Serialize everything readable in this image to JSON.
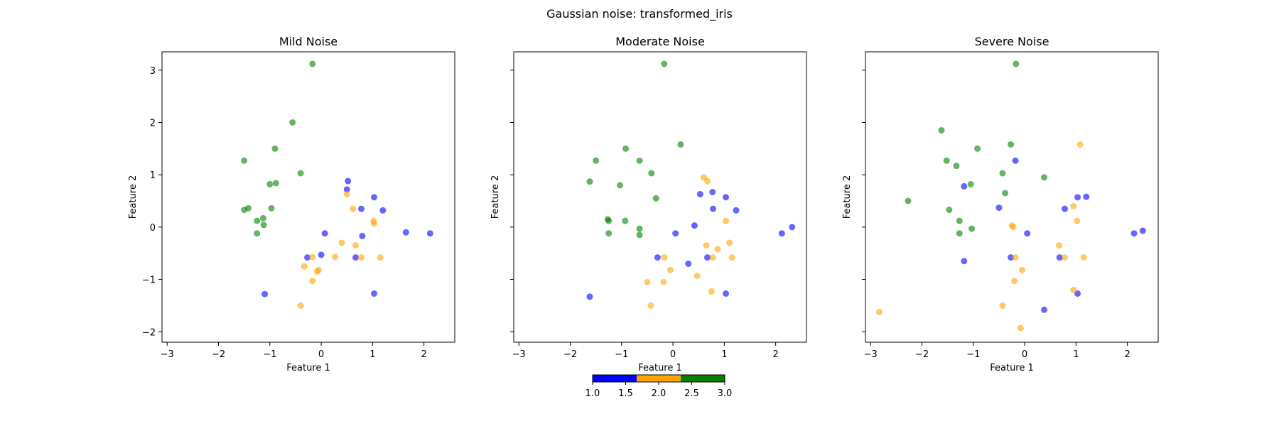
{
  "figure": {
    "title": "Gaussian noise: transformed_iris"
  },
  "colors": {
    "class_1": "#0000ff",
    "class_2": "#ffa500",
    "class_3": "#008000"
  },
  "colorbar": {
    "ticks": [
      "1.0",
      "1.5",
      "2.0",
      "2.5",
      "3.0"
    ],
    "colors": [
      "#0000ff",
      "#ffa500",
      "#008000"
    ]
  },
  "chart_data": [
    {
      "type": "scatter",
      "title": "Mild Noise",
      "xlabel": "Feature 1",
      "ylabel": "Feature 2",
      "xlim": [
        -3.1,
        2.6
      ],
      "ylim": [
        -2.2,
        3.35
      ],
      "xticks": [
        -3,
        -2,
        -1,
        0,
        1,
        2
      ],
      "yticks": [
        -2,
        -1,
        0,
        1,
        2,
        3
      ],
      "ytick_labels_shown": true,
      "marker_alpha": 0.6,
      "points": [
        {
          "x": -0.17,
          "y": 3.12,
          "c": 3
        },
        {
          "x": -0.56,
          "y": 2.0,
          "c": 3
        },
        {
          "x": -1.5,
          "y": 1.27,
          "c": 3
        },
        {
          "x": -0.9,
          "y": 1.5,
          "c": 3
        },
        {
          "x": -0.4,
          "y": 1.03,
          "c": 3
        },
        {
          "x": -1.0,
          "y": 0.82,
          "c": 3
        },
        {
          "x": -0.88,
          "y": 0.84,
          "c": 3
        },
        {
          "x": -1.42,
          "y": 0.36,
          "c": 3
        },
        {
          "x": -1.5,
          "y": 0.33,
          "c": 3
        },
        {
          "x": -0.97,
          "y": 0.36,
          "c": 3
        },
        {
          "x": -1.25,
          "y": 0.12,
          "c": 3
        },
        {
          "x": -1.13,
          "y": 0.17,
          "c": 3
        },
        {
          "x": -1.12,
          "y": 0.04,
          "c": 3
        },
        {
          "x": -1.25,
          "y": -0.12,
          "c": 3
        },
        {
          "x": 0.52,
          "y": 0.88,
          "c": 1
        },
        {
          "x": 0.5,
          "y": 0.72,
          "c": 1
        },
        {
          "x": 1.03,
          "y": 0.57,
          "c": 1
        },
        {
          "x": 0.78,
          "y": 0.35,
          "c": 1
        },
        {
          "x": 1.2,
          "y": 0.32,
          "c": 1
        },
        {
          "x": 0.07,
          "y": -0.12,
          "c": 1
        },
        {
          "x": 0.8,
          "y": -0.17,
          "c": 1
        },
        {
          "x": 1.65,
          "y": -0.1,
          "c": 1
        },
        {
          "x": 2.12,
          "y": -0.12,
          "c": 1
        },
        {
          "x": -0.27,
          "y": -0.58,
          "c": 1
        },
        {
          "x": 0.0,
          "y": -0.53,
          "c": 1
        },
        {
          "x": 0.67,
          "y": -0.58,
          "c": 1
        },
        {
          "x": -1.1,
          "y": -1.28,
          "c": 1
        },
        {
          "x": 1.03,
          "y": -1.27,
          "c": 1
        },
        {
          "x": 0.5,
          "y": 0.63,
          "c": 2
        },
        {
          "x": 0.62,
          "y": 0.35,
          "c": 2
        },
        {
          "x": 1.02,
          "y": 0.12,
          "c": 2
        },
        {
          "x": 1.03,
          "y": 0.07,
          "c": 2
        },
        {
          "x": 0.4,
          "y": -0.3,
          "c": 2
        },
        {
          "x": 0.67,
          "y": -0.35,
          "c": 2
        },
        {
          "x": 0.27,
          "y": -0.57,
          "c": 2
        },
        {
          "x": 0.78,
          "y": -0.58,
          "c": 2
        },
        {
          "x": 1.15,
          "y": -0.58,
          "c": 2
        },
        {
          "x": -0.17,
          "y": -0.57,
          "c": 2
        },
        {
          "x": -0.33,
          "y": -0.75,
          "c": 2
        },
        {
          "x": -0.05,
          "y": -0.82,
          "c": 2
        },
        {
          "x": -0.08,
          "y": -0.85,
          "c": 2
        },
        {
          "x": -0.17,
          "y": -1.03,
          "c": 2
        },
        {
          "x": -0.4,
          "y": -1.5,
          "c": 2
        }
      ]
    },
    {
      "type": "scatter",
      "title": "Moderate Noise",
      "xlabel": "Feature 1",
      "ylabel": "Feature 2",
      "xlim": [
        -3.1,
        2.6
      ],
      "ylim": [
        -2.2,
        3.35
      ],
      "xticks": [
        -3,
        -2,
        -1,
        0,
        1,
        2
      ],
      "yticks": [
        -2,
        -1,
        0,
        1,
        2,
        3
      ],
      "ytick_labels_shown": false,
      "marker_alpha": 0.6,
      "points": [
        {
          "x": -0.17,
          "y": 3.12,
          "c": 3
        },
        {
          "x": 0.15,
          "y": 1.58,
          "c": 3
        },
        {
          "x": -0.92,
          "y": 1.5,
          "c": 3
        },
        {
          "x": -1.5,
          "y": 1.27,
          "c": 3
        },
        {
          "x": -0.65,
          "y": 1.27,
          "c": 3
        },
        {
          "x": -0.42,
          "y": 1.03,
          "c": 3
        },
        {
          "x": -1.62,
          "y": 0.87,
          "c": 3
        },
        {
          "x": -1.03,
          "y": 0.8,
          "c": 3
        },
        {
          "x": -0.33,
          "y": 0.55,
          "c": 3
        },
        {
          "x": -1.27,
          "y": 0.15,
          "c": 3
        },
        {
          "x": -1.25,
          "y": 0.12,
          "c": 3
        },
        {
          "x": -0.93,
          "y": 0.12,
          "c": 3
        },
        {
          "x": -0.65,
          "y": -0.03,
          "c": 3
        },
        {
          "x": -1.25,
          "y": -0.12,
          "c": 3
        },
        {
          "x": -0.65,
          "y": -0.15,
          "c": 3
        },
        {
          "x": 0.77,
          "y": 0.67,
          "c": 1
        },
        {
          "x": 0.53,
          "y": 0.63,
          "c": 1
        },
        {
          "x": 1.03,
          "y": 0.57,
          "c": 1
        },
        {
          "x": 0.78,
          "y": 0.35,
          "c": 1
        },
        {
          "x": 1.23,
          "y": 0.32,
          "c": 1
        },
        {
          "x": 0.42,
          "y": 0.03,
          "c": 1
        },
        {
          "x": 0.05,
          "y": -0.12,
          "c": 1
        },
        {
          "x": 2.32,
          "y": 0.0,
          "c": 1
        },
        {
          "x": 2.12,
          "y": -0.12,
          "c": 1
        },
        {
          "x": -0.3,
          "y": -0.58,
          "c": 1
        },
        {
          "x": 0.67,
          "y": -0.58,
          "c": 1
        },
        {
          "x": 0.3,
          "y": -0.7,
          "c": 1
        },
        {
          "x": -1.62,
          "y": -1.33,
          "c": 1
        },
        {
          "x": 1.03,
          "y": -1.27,
          "c": 1
        },
        {
          "x": 0.6,
          "y": 0.95,
          "c": 2
        },
        {
          "x": 0.67,
          "y": 0.88,
          "c": 2
        },
        {
          "x": 1.03,
          "y": 0.12,
          "c": 2
        },
        {
          "x": 0.65,
          "y": -0.35,
          "c": 2
        },
        {
          "x": 0.87,
          "y": -0.42,
          "c": 2
        },
        {
          "x": 1.1,
          "y": -0.3,
          "c": 2
        },
        {
          "x": 0.78,
          "y": -0.58,
          "c": 2
        },
        {
          "x": 1.15,
          "y": -0.58,
          "c": 2
        },
        {
          "x": -0.17,
          "y": -0.58,
          "c": 2
        },
        {
          "x": -0.05,
          "y": -0.82,
          "c": 2
        },
        {
          "x": 0.47,
          "y": -0.93,
          "c": 2
        },
        {
          "x": -0.5,
          "y": -1.05,
          "c": 2
        },
        {
          "x": -0.18,
          "y": -1.05,
          "c": 2
        },
        {
          "x": 0.75,
          "y": -1.23,
          "c": 2
        },
        {
          "x": -0.43,
          "y": -1.5,
          "c": 2
        }
      ]
    },
    {
      "type": "scatter",
      "title": "Severe Noise",
      "xlabel": "Feature 1",
      "ylabel": "Feature 2",
      "xlim": [
        -3.1,
        2.6
      ],
      "ylim": [
        -2.2,
        3.35
      ],
      "xticks": [
        -3,
        -2,
        -1,
        0,
        1,
        2
      ],
      "yticks": [
        -2,
        -1,
        0,
        1,
        2,
        3
      ],
      "ytick_labels_shown": false,
      "marker_alpha": 0.6,
      "points": [
        {
          "x": -0.17,
          "y": 3.12,
          "c": 3
        },
        {
          "x": -1.62,
          "y": 1.85,
          "c": 3
        },
        {
          "x": -0.27,
          "y": 1.58,
          "c": 3
        },
        {
          "x": -0.92,
          "y": 1.5,
          "c": 3
        },
        {
          "x": -1.52,
          "y": 1.27,
          "c": 3
        },
        {
          "x": -1.33,
          "y": 1.17,
          "c": 3
        },
        {
          "x": -0.43,
          "y": 1.03,
          "c": 3
        },
        {
          "x": 0.38,
          "y": 0.95,
          "c": 3
        },
        {
          "x": -1.05,
          "y": 0.82,
          "c": 3
        },
        {
          "x": -0.38,
          "y": 0.65,
          "c": 3
        },
        {
          "x": -2.27,
          "y": 0.5,
          "c": 3
        },
        {
          "x": -1.47,
          "y": 0.33,
          "c": 3
        },
        {
          "x": -1.27,
          "y": 0.12,
          "c": 3
        },
        {
          "x": -1.03,
          "y": -0.03,
          "c": 3
        },
        {
          "x": -1.27,
          "y": -0.12,
          "c": 3
        },
        {
          "x": -0.18,
          "y": 1.27,
          "c": 1
        },
        {
          "x": -1.18,
          "y": 0.78,
          "c": 1
        },
        {
          "x": 1.03,
          "y": 0.57,
          "c": 1
        },
        {
          "x": 1.2,
          "y": 0.58,
          "c": 1
        },
        {
          "x": -0.5,
          "y": 0.37,
          "c": 1
        },
        {
          "x": 0.78,
          "y": 0.35,
          "c": 1
        },
        {
          "x": 0.05,
          "y": -0.12,
          "c": 1
        },
        {
          "x": 2.3,
          "y": -0.07,
          "c": 1
        },
        {
          "x": 2.13,
          "y": -0.12,
          "c": 1
        },
        {
          "x": -0.27,
          "y": -0.58,
          "c": 1
        },
        {
          "x": 0.68,
          "y": -0.58,
          "c": 1
        },
        {
          "x": -1.18,
          "y": -0.65,
          "c": 1
        },
        {
          "x": 1.03,
          "y": -1.27,
          "c": 1
        },
        {
          "x": 0.38,
          "y": -1.58,
          "c": 1
        },
        {
          "x": 1.08,
          "y": 1.58,
          "c": 2
        },
        {
          "x": 0.95,
          "y": 0.4,
          "c": 2
        },
        {
          "x": 1.02,
          "y": 0.12,
          "c": 2
        },
        {
          "x": -0.25,
          "y": 0.03,
          "c": 2
        },
        {
          "x": -0.22,
          "y": 0.0,
          "c": 2
        },
        {
          "x": 0.67,
          "y": -0.35,
          "c": 2
        },
        {
          "x": -0.18,
          "y": -0.58,
          "c": 2
        },
        {
          "x": 0.78,
          "y": -0.58,
          "c": 2
        },
        {
          "x": 1.15,
          "y": -0.58,
          "c": 2
        },
        {
          "x": -0.05,
          "y": -0.82,
          "c": 2
        },
        {
          "x": -0.2,
          "y": -1.03,
          "c": 2
        },
        {
          "x": 0.95,
          "y": -1.2,
          "c": 2
        },
        {
          "x": -0.43,
          "y": -1.5,
          "c": 2
        },
        {
          "x": -2.83,
          "y": -1.62,
          "c": 2
        },
        {
          "x": -0.08,
          "y": -1.93,
          "c": 2
        }
      ]
    }
  ]
}
